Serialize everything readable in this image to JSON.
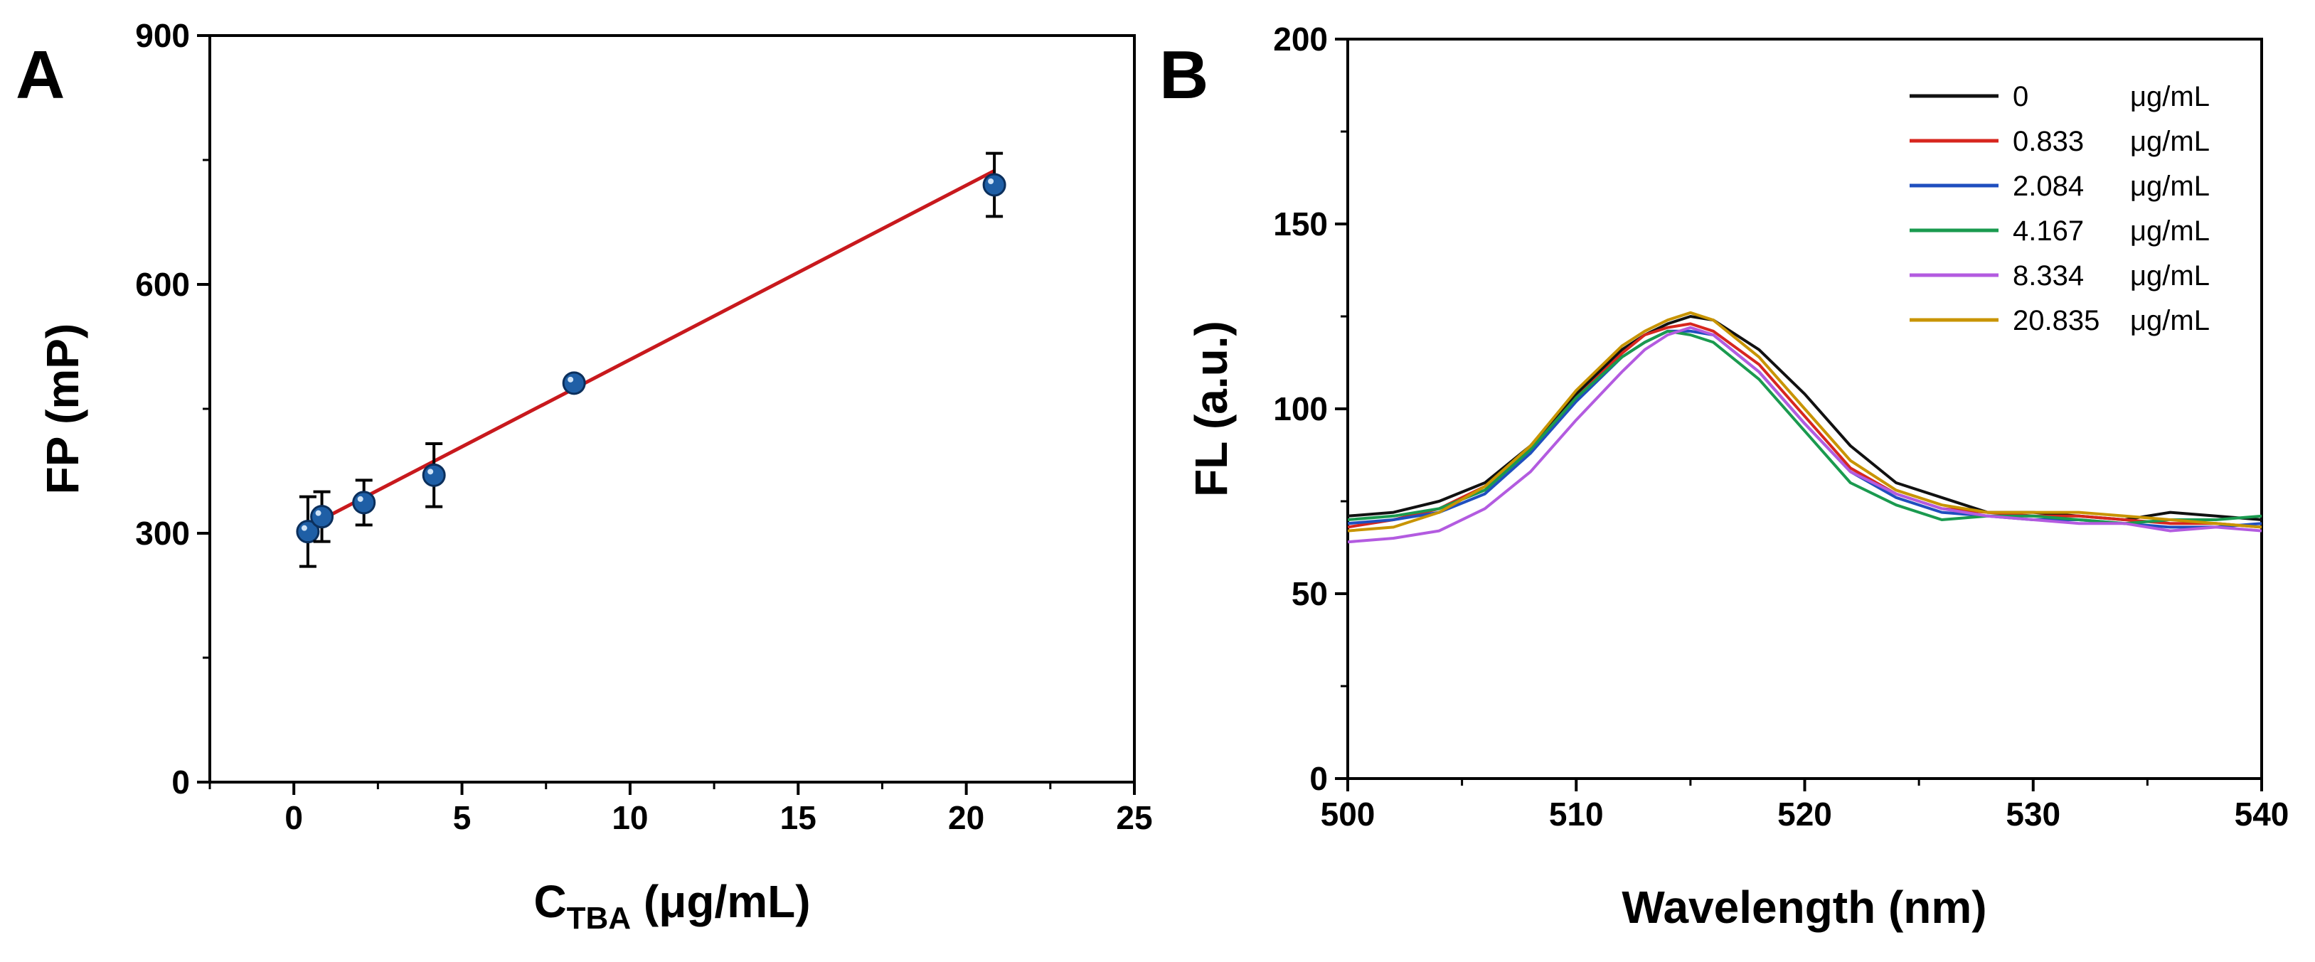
{
  "chart_data": [
    {
      "panel": "A",
      "type": "scatter",
      "xlabel_main": "C",
      "xlabel_sub": "TBA",
      "xlabel_unit": " (μg/mL)",
      "ylabel": "FP (mP)",
      "xlim": [
        -2.5,
        25
      ],
      "ylim": [
        0,
        900
      ],
      "xticks": [
        "0",
        "5",
        "10",
        "15",
        "20",
        "25"
      ],
      "xtick_values": [
        0,
        5,
        10,
        15,
        20,
        25
      ],
      "yticks": [
        "0",
        "300",
        "600",
        "900"
      ],
      "ytick_values": [
        0,
        300,
        600,
        900
      ],
      "points": [
        {
          "x": 0.417,
          "y": 302,
          "err": 42
        },
        {
          "x": 0.833,
          "y": 320,
          "err": 30
        },
        {
          "x": 2.084,
          "y": 337,
          "err": 27
        },
        {
          "x": 4.167,
          "y": 370,
          "err": 38
        },
        {
          "x": 8.334,
          "y": 481,
          "err": 8
        },
        {
          "x": 20.835,
          "y": 720,
          "err": 38
        }
      ],
      "fit": {
        "x": [
          0.417,
          20.835
        ],
        "y": [
          308,
          737
        ],
        "color": "#c8191d"
      },
      "point_color": "#1f5fa6"
    },
    {
      "panel": "B",
      "type": "line",
      "xlabel": "Wavelength (nm)",
      "ylabel": "FL (a.u.)",
      "xlim": [
        500,
        540
      ],
      "ylim": [
        0,
        200
      ],
      "xticks": [
        "500",
        "510",
        "520",
        "530",
        "540"
      ],
      "xtick_values": [
        500,
        510,
        520,
        530,
        540
      ],
      "yticks": [
        "0",
        "50",
        "100",
        "150",
        "200"
      ],
      "ytick_values": [
        0,
        50,
        100,
        150,
        200
      ],
      "x": [
        500,
        502,
        504,
        506,
        508,
        510,
        512,
        513,
        514,
        515,
        516,
        518,
        520,
        522,
        524,
        526,
        528,
        530,
        532,
        534,
        536,
        538,
        540
      ],
      "series": [
        {
          "name": "0",
          "unit": "μg/mL",
          "color": "#111111",
          "values": [
            71,
            72,
            75,
            80,
            90,
            104,
            116,
            120,
            123,
            125,
            124,
            116,
            104,
            90,
            80,
            76,
            72,
            72,
            71,
            70,
            72,
            71,
            70
          ]
        },
        {
          "name": "0.833",
          "unit": "μg/mL",
          "color": "#d7261e",
          "values": [
            68,
            70,
            73,
            79,
            89,
            103,
            115,
            120,
            122,
            123,
            121,
            112,
            98,
            84,
            77,
            73,
            72,
            71,
            71,
            70,
            69,
            69,
            68
          ]
        },
        {
          "name": "2.084",
          "unit": "μg/mL",
          "color": "#1f4fbf",
          "values": [
            69,
            70,
            72,
            77,
            88,
            102,
            114,
            118,
            121,
            121,
            120,
            110,
            96,
            83,
            76,
            72,
            71,
            70,
            70,
            69,
            68,
            68,
            69
          ]
        },
        {
          "name": "4.167",
          "unit": "μg/mL",
          "color": "#1a9a4f",
          "values": [
            70,
            71,
            73,
            78,
            89,
            103,
            114,
            118,
            121,
            120,
            118,
            108,
            94,
            80,
            74,
            70,
            71,
            71,
            70,
            69,
            70,
            70,
            71
          ]
        },
        {
          "name": "8.334",
          "unit": "μg/mL",
          "color": "#b35be0",
          "values": [
            64,
            65,
            67,
            73,
            83,
            97,
            110,
            116,
            120,
            122,
            120,
            110,
            96,
            83,
            77,
            73,
            71,
            70,
            69,
            69,
            67,
            68,
            67
          ]
        },
        {
          "name": "20.835",
          "unit": "μg/mL",
          "color": "#c89400",
          "values": [
            67,
            68,
            72,
            79,
            90,
            105,
            117,
            121,
            124,
            126,
            124,
            114,
            100,
            86,
            78,
            74,
            72,
            72,
            72,
            71,
            70,
            69,
            68
          ]
        }
      ]
    }
  ]
}
